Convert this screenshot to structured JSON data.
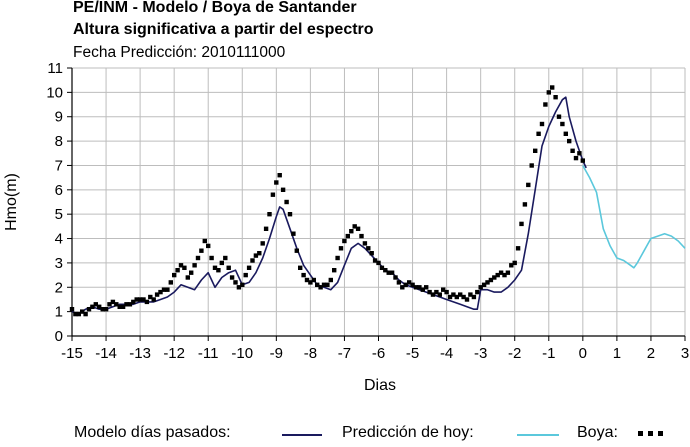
{
  "header": {
    "title_line1": "PE/INM - Modelo / Boya de Santander",
    "title_line2": "Altura significativa a partir del espectro",
    "subtitle": "Fecha Predicción: 2010111000"
  },
  "legend": {
    "model_label": "Modelo días pasados:",
    "forecast_label": "Predicción de hoy:",
    "buoy_label": "Boya:"
  },
  "chart_data": {
    "type": "line",
    "xlabel": "Dias",
    "ylabel": "Hmo(m)",
    "xlim": [
      -15,
      3
    ],
    "ylim": [
      0,
      11
    ],
    "xticks": [
      "-15",
      "-14",
      "-13",
      "-12",
      "-11",
      "-10",
      "-9",
      "-8",
      "-7",
      "-6",
      "-5",
      "-4",
      "-3",
      "-2",
      "-1",
      "0",
      "1",
      "2",
      "3"
    ],
    "yticks": [
      "0",
      "1",
      "2",
      "3",
      "4",
      "5",
      "6",
      "7",
      "8",
      "9",
      "10",
      "11"
    ],
    "grid": true,
    "legend_position": "bottom",
    "colors": {
      "model": "#1a1a5e",
      "forecast": "#5bc8dc",
      "buoy": "#000000"
    },
    "series": [
      {
        "name": "Modelo días pasados",
        "x": [
          -15,
          -14.8,
          -14.6,
          -14.4,
          -14.2,
          -14,
          -13.8,
          -13.6,
          -13.4,
          -13.2,
          -13,
          -12.8,
          -12.6,
          -12.4,
          -12.2,
          -12,
          -11.8,
          -11.6,
          -11.4,
          -11.2,
          -11,
          -10.9,
          -10.8,
          -10.6,
          -10.4,
          -10.2,
          -10,
          -9.8,
          -9.6,
          -9.4,
          -9.2,
          -9,
          -8.9,
          -8.8,
          -8.6,
          -8.4,
          -8.2,
          -8,
          -7.8,
          -7.6,
          -7.4,
          -7.2,
          -7,
          -6.8,
          -6.6,
          -6.4,
          -6.2,
          -6,
          -5.8,
          -5.6,
          -5.4,
          -5.2,
          -5,
          -4.8,
          -4.6,
          -4.4,
          -4.2,
          -4,
          -3.8,
          -3.6,
          -3.4,
          -3.2,
          -3.1,
          -3,
          -2.8,
          -2.6,
          -2.4,
          -2.2,
          -2,
          -1.8,
          -1.6,
          -1.4,
          -1.2,
          -1,
          -0.8,
          -0.6,
          -0.5,
          -0.4,
          -0.2,
          0,
          0.1
        ],
        "y": [
          1.0,
          0.9,
          1.1,
          1.2,
          1.1,
          1.1,
          1.2,
          1.3,
          1.3,
          1.3,
          1.4,
          1.4,
          1.4,
          1.5,
          1.6,
          1.8,
          2.1,
          2.0,
          1.9,
          2.3,
          2.6,
          2.3,
          2.0,
          2.4,
          2.6,
          2.7,
          2.1,
          2.2,
          2.6,
          3.2,
          4.0,
          4.9,
          5.3,
          5.2,
          4.4,
          3.6,
          2.9,
          2.5,
          2.1,
          2.0,
          1.9,
          2.2,
          2.9,
          3.6,
          3.8,
          3.6,
          3.3,
          3.0,
          2.7,
          2.6,
          2.3,
          2.1,
          2.0,
          1.9,
          1.8,
          1.7,
          1.6,
          1.5,
          1.4,
          1.3,
          1.2,
          1.1,
          1.1,
          1.9,
          1.9,
          1.8,
          1.8,
          2.0,
          2.3,
          2.7,
          4.2,
          6.0,
          7.8,
          8.6,
          9.2,
          9.7,
          9.8,
          9.0,
          8.0,
          7.2,
          6.9
        ]
      },
      {
        "name": "Predicción de hoy",
        "x": [
          0,
          0.2,
          0.4,
          0.6,
          0.8,
          1,
          1.2,
          1.4,
          1.5,
          1.6,
          1.8,
          2,
          2.2,
          2.4,
          2.6,
          2.8,
          3
        ],
        "y": [
          7.0,
          6.5,
          5.9,
          4.4,
          3.7,
          3.2,
          3.1,
          2.9,
          2.8,
          3.0,
          3.5,
          4.0,
          4.1,
          4.2,
          4.1,
          3.9,
          3.6
        ]
      },
      {
        "name": "Boya",
        "x": [
          -15,
          -14.9,
          -14.8,
          -14.7,
          -14.6,
          -14.5,
          -14.4,
          -14.3,
          -14.2,
          -14.1,
          -14,
          -13.9,
          -13.8,
          -13.7,
          -13.6,
          -13.5,
          -13.4,
          -13.3,
          -13.2,
          -13.1,
          -13,
          -12.9,
          -12.8,
          -12.7,
          -12.6,
          -12.5,
          -12.4,
          -12.3,
          -12.2,
          -12.1,
          -12,
          -11.9,
          -11.8,
          -11.7,
          -11.6,
          -11.5,
          -11.4,
          -11.3,
          -11.2,
          -11.1,
          -11,
          -10.9,
          -10.8,
          -10.7,
          -10.6,
          -10.5,
          -10.4,
          -10.3,
          -10.2,
          -10.1,
          -10,
          -9.9,
          -9.8,
          -9.7,
          -9.6,
          -9.5,
          -9.4,
          -9.3,
          -9.2,
          -9.1,
          -9,
          -8.9,
          -8.8,
          -8.7,
          -8.6,
          -8.5,
          -8.4,
          -8.3,
          -8.2,
          -8.1,
          -8,
          -7.9,
          -7.8,
          -7.7,
          -7.6,
          -7.5,
          -7.4,
          -7.3,
          -7.2,
          -7.1,
          -7,
          -6.9,
          -6.8,
          -6.7,
          -6.6,
          -6.5,
          -6.4,
          -6.3,
          -6.2,
          -6.1,
          -6,
          -5.9,
          -5.8,
          -5.7,
          -5.6,
          -5.5,
          -5.4,
          -5.3,
          -5.2,
          -5.1,
          -5,
          -4.9,
          -4.8,
          -4.7,
          -4.6,
          -4.5,
          -4.4,
          -4.3,
          -4.2,
          -4.1,
          -4,
          -3.9,
          -3.8,
          -3.7,
          -3.6,
          -3.5,
          -3.4,
          -3.3,
          -3.2,
          -3.1,
          -3,
          -2.9,
          -2.8,
          -2.7,
          -2.6,
          -2.5,
          -2.4,
          -2.3,
          -2.2,
          -2.1,
          -2,
          -1.9,
          -1.8,
          -1.7,
          -1.6,
          -1.5,
          -1.4,
          -1.3,
          -1.2,
          -1.1,
          -1,
          -0.9,
          -0.8,
          -0.7,
          -0.6,
          -0.5,
          -0.4,
          -0.3,
          -0.2,
          -0.1,
          0
        ],
        "y": [
          1.1,
          0.9,
          0.9,
          1.0,
          0.9,
          1.1,
          1.2,
          1.3,
          1.2,
          1.1,
          1.1,
          1.3,
          1.4,
          1.3,
          1.2,
          1.2,
          1.3,
          1.3,
          1.4,
          1.5,
          1.5,
          1.5,
          1.4,
          1.6,
          1.5,
          1.7,
          1.8,
          1.9,
          1.9,
          2.2,
          2.5,
          2.7,
          2.9,
          2.8,
          2.4,
          2.6,
          2.9,
          3.2,
          3.5,
          3.9,
          3.7,
          3.2,
          2.8,
          2.7,
          3.0,
          3.2,
          2.8,
          2.4,
          2.2,
          2.0,
          2.1,
          2.5,
          2.8,
          3.1,
          3.3,
          3.4,
          3.8,
          4.4,
          5.0,
          5.8,
          6.3,
          6.6,
          6.0,
          5.5,
          5.0,
          4.2,
          3.5,
          2.8,
          2.5,
          2.3,
          2.2,
          2.3,
          2.1,
          2.0,
          2.1,
          2.1,
          2.3,
          2.7,
          3.2,
          3.6,
          3.9,
          4.1,
          4.3,
          4.5,
          4.4,
          4.1,
          3.8,
          3.6,
          3.4,
          3.1,
          3.0,
          2.8,
          2.7,
          2.6,
          2.6,
          2.4,
          2.2,
          2.0,
          2.1,
          2.2,
          2.1,
          2.0,
          2.0,
          1.9,
          2.0,
          1.8,
          1.7,
          1.8,
          1.7,
          1.9,
          1.8,
          1.6,
          1.7,
          1.6,
          1.7,
          1.6,
          1.5,
          1.7,
          1.6,
          1.8,
          2.0,
          2.1,
          2.2,
          2.3,
          2.4,
          2.5,
          2.6,
          2.5,
          2.6,
          2.9,
          3.0,
          3.6,
          4.6,
          5.4,
          6.2,
          7.0,
          7.6,
          8.3,
          8.7,
          9.5,
          10.0,
          10.2,
          9.8,
          9.0,
          8.7,
          8.3,
          8.0,
          7.6,
          7.3,
          7.5,
          7.2
        ]
      }
    ]
  }
}
